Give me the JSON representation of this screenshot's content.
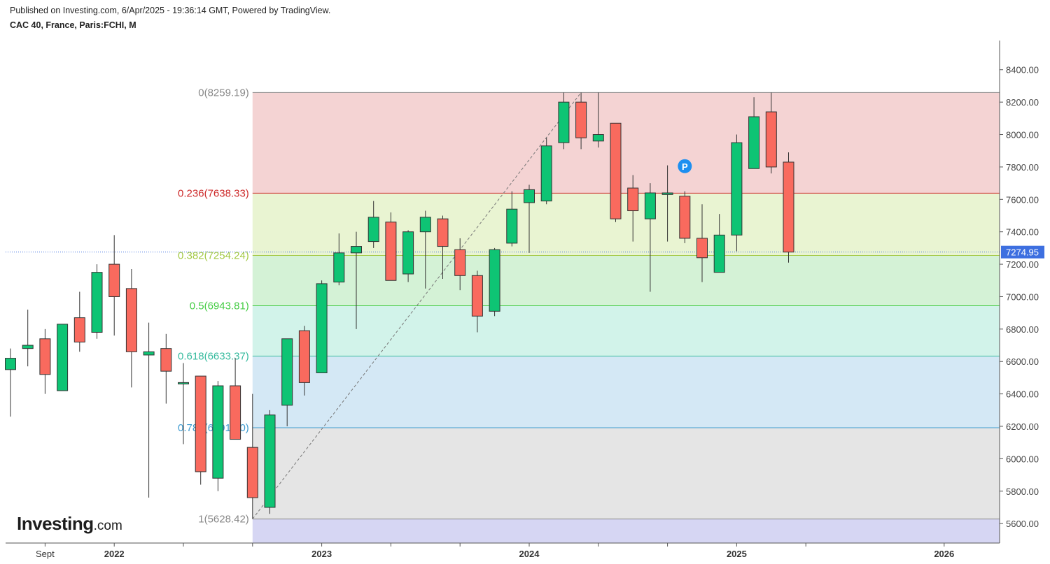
{
  "header": {
    "published": "Published on Investing.com, 6/Apr/2025 - 19:36:14 GMT, Powered by TradingView.",
    "title": "CAC 40, France, Paris:FCHI, M"
  },
  "logo": {
    "main": "Investing",
    "suffix": ".com"
  },
  "colors": {
    "up": "#0ec474",
    "down": "#f96a5e",
    "axis": "#555555",
    "current_price_bg": "#3d6fe0",
    "marker": "#1d8ff0"
  },
  "chart_data": {
    "type": "candlestick",
    "interval": "M",
    "y_axis": {
      "range": [
        5480,
        8580
      ],
      "ticks": [
        5600,
        5800,
        6000,
        6200,
        6400,
        6600,
        6800,
        7000,
        7200,
        7400,
        7600,
        7800,
        8000,
        8200,
        8400
      ],
      "tick_labels": [
        "5600.00",
        "5800.00",
        "6000.00",
        "6200.00",
        "6400.00",
        "6600.00",
        "6800.00",
        "7000.00",
        "7200.00",
        "7400.00",
        "7600.00",
        "7800.00",
        "8000.00",
        "8200.00",
        "8400.00"
      ]
    },
    "x_axis": {
      "labels": [
        {
          "text": "Sept",
          "i": 2
        },
        {
          "text": "2022",
          "i": 6
        },
        {
          "text": "2023",
          "i": 18
        },
        {
          "text": "2024",
          "i": 30
        },
        {
          "text": "2025",
          "i": 42
        },
        {
          "text": "2026",
          "i": 54
        }
      ],
      "minor_ticks": [
        10,
        14,
        22,
        26,
        34,
        38,
        46
      ]
    },
    "current_price": "7274.95",
    "current_price_value": 7274.95,
    "candles": [
      {
        "date": "2021-07",
        "o": 6550,
        "h": 6680,
        "l": 6260,
        "c": 6620
      },
      {
        "date": "2021-08",
        "o": 6680,
        "h": 6920,
        "l": 6570,
        "c": 6700
      },
      {
        "date": "2021-09",
        "o": 6740,
        "h": 6800,
        "l": 6400,
        "c": 6520
      },
      {
        "date": "2021-10",
        "o": 6420,
        "h": 6830,
        "l": 6420,
        "c": 6830
      },
      {
        "date": "2021-11",
        "o": 6870,
        "h": 7030,
        "l": 6660,
        "c": 6720
      },
      {
        "date": "2021-12",
        "o": 6780,
        "h": 7200,
        "l": 6740,
        "c": 7150
      },
      {
        "date": "2022-01",
        "o": 7200,
        "h": 7380,
        "l": 6760,
        "c": 7000
      },
      {
        "date": "2022-02",
        "o": 7050,
        "h": 7170,
        "l": 6440,
        "c": 6660
      },
      {
        "date": "2022-03",
        "o": 6640,
        "h": 6840,
        "l": 5760,
        "c": 6660
      },
      {
        "date": "2022-04",
        "o": 6680,
        "h": 6770,
        "l": 6340,
        "c": 6540
      },
      {
        "date": "2022-05",
        "o": 6470,
        "h": 6590,
        "l": 6090,
        "c": 6470
      },
      {
        "date": "2022-06",
        "o": 6510,
        "h": 6510,
        "l": 5840,
        "c": 5920
      },
      {
        "date": "2022-07",
        "o": 5880,
        "h": 6480,
        "l": 5800,
        "c": 6450
      },
      {
        "date": "2022-08",
        "o": 6450,
        "h": 6620,
        "l": 6120,
        "c": 6120
      },
      {
        "date": "2022-09",
        "o": 6070,
        "h": 6400,
        "l": 5630,
        "c": 5760
      },
      {
        "date": "2022-10",
        "o": 5700,
        "h": 6300,
        "l": 5660,
        "c": 6270
      },
      {
        "date": "2022-11",
        "o": 6330,
        "h": 6740,
        "l": 6200,
        "c": 6740
      },
      {
        "date": "2022-12",
        "o": 6790,
        "h": 6820,
        "l": 6390,
        "c": 6470
      },
      {
        "date": "2023-01",
        "o": 6530,
        "h": 7100,
        "l": 6530,
        "c": 7080
      },
      {
        "date": "2023-02",
        "o": 7090,
        "h": 7390,
        "l": 7070,
        "c": 7270
      },
      {
        "date": "2023-03",
        "o": 7270,
        "h": 7400,
        "l": 6800,
        "c": 7310
      },
      {
        "date": "2023-04",
        "o": 7340,
        "h": 7590,
        "l": 7300,
        "c": 7490
      },
      {
        "date": "2023-05",
        "o": 7460,
        "h": 7520,
        "l": 7100,
        "c": 7100
      },
      {
        "date": "2023-06",
        "o": 7140,
        "h": 7410,
        "l": 7090,
        "c": 7400
      },
      {
        "date": "2023-07",
        "o": 7400,
        "h": 7530,
        "l": 7050,
        "c": 7490
      },
      {
        "date": "2023-08",
        "o": 7480,
        "h": 7500,
        "l": 7110,
        "c": 7310
      },
      {
        "date": "2023-09",
        "o": 7290,
        "h": 7360,
        "l": 7040,
        "c": 7130
      },
      {
        "date": "2023-10",
        "o": 7130,
        "h": 7160,
        "l": 6780,
        "c": 6880
      },
      {
        "date": "2023-11",
        "o": 6910,
        "h": 7300,
        "l": 6880,
        "c": 7290
      },
      {
        "date": "2023-12",
        "o": 7330,
        "h": 7650,
        "l": 7310,
        "c": 7540
      },
      {
        "date": "2024-01",
        "o": 7580,
        "h": 7690,
        "l": 7270,
        "c": 7660
      },
      {
        "date": "2024-02",
        "o": 7590,
        "h": 7980,
        "l": 7570,
        "c": 7930
      },
      {
        "date": "2024-03",
        "o": 7950,
        "h": 8259,
        "l": 7910,
        "c": 8200
      },
      {
        "date": "2024-04",
        "o": 8200,
        "h": 8259,
        "l": 7910,
        "c": 7980
      },
      {
        "date": "2024-05",
        "o": 7960,
        "h": 8259,
        "l": 7920,
        "c": 8000
      },
      {
        "date": "2024-06",
        "o": 8070,
        "h": 8070,
        "l": 7460,
        "c": 7480
      },
      {
        "date": "2024-07",
        "o": 7670,
        "h": 7750,
        "l": 7340,
        "c": 7530
      },
      {
        "date": "2024-08",
        "o": 7480,
        "h": 7700,
        "l": 7030,
        "c": 7640
      },
      {
        "date": "2024-09",
        "o": 7630,
        "h": 7810,
        "l": 7340,
        "c": 7640
      },
      {
        "date": "2024-10",
        "o": 7620,
        "h": 7650,
        "l": 7330,
        "c": 7360
      },
      {
        "date": "2024-11",
        "o": 7360,
        "h": 7570,
        "l": 7090,
        "c": 7240
      },
      {
        "date": "2024-12",
        "o": 7150,
        "h": 7510,
        "l": 7150,
        "c": 7380
      },
      {
        "date": "2025-01",
        "o": 7380,
        "h": 8000,
        "l": 7280,
        "c": 7950
      },
      {
        "date": "2025-02",
        "o": 7790,
        "h": 8230,
        "l": 7790,
        "c": 8110
      },
      {
        "date": "2025-03",
        "o": 8140,
        "h": 8259,
        "l": 7760,
        "c": 7800
      },
      {
        "date": "2025-04",
        "o": 7830,
        "h": 7890,
        "l": 7210,
        "c": 7275
      }
    ],
    "fibonacci": {
      "start": {
        "i": 14,
        "price": 5628.42
      },
      "end": {
        "i": 33,
        "price": 8259.19
      },
      "levels": [
        {
          "ratio": 0,
          "price": 8259.19,
          "label": "0(8259.19)",
          "color": "#888888",
          "fill": "#f4d3d3"
        },
        {
          "ratio": 0.236,
          "price": 7638.33,
          "label": "0.236(7638.33)",
          "color": "#cd2a2a",
          "fill": "#e9f4d2"
        },
        {
          "ratio": 0.382,
          "price": 7254.24,
          "label": "0.382(7254.24)",
          "color": "#a3c944",
          "fill": "#d4f2d6"
        },
        {
          "ratio": 0.5,
          "price": 6943.81,
          "label": "0.5(6943.81)",
          "color": "#44cc44",
          "fill": "#d2f3ea"
        },
        {
          "ratio": 0.618,
          "price": 6633.37,
          "label": "0.618(6633.37)",
          "color": "#36bb9e",
          "fill": "#d4e8f5"
        },
        {
          "ratio": 0.786,
          "price": 6191.4,
          "label": "0.786(6191.40)",
          "color": "#3e9bd0",
          "fill": "#e5e5e5"
        },
        {
          "ratio": 1,
          "price": 5628.42,
          "label": "1(5628.42)",
          "color": "#888888",
          "fill": "#d6d6f3"
        }
      ]
    },
    "marker": {
      "text": "P",
      "i": 39,
      "price": 7805
    }
  }
}
